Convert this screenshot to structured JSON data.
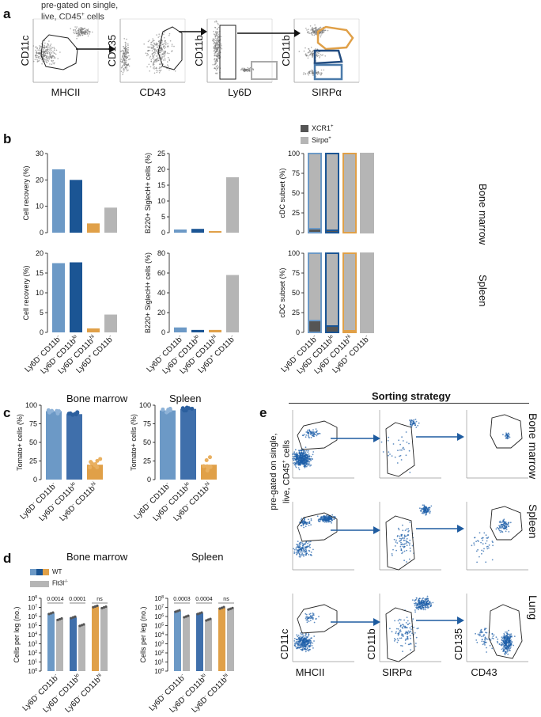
{
  "panel_labels": {
    "a": "a",
    "b": "b",
    "c": "c",
    "d": "d",
    "e": "e"
  },
  "colors": {
    "light_blue": "#6c99c6",
    "dark_blue": "#1b5594",
    "orange": "#e0a048",
    "grey": "#b5b5b5",
    "dots": "#1d5ea8",
    "dark_grey": "#555555"
  },
  "panel_a": {
    "pregate": "pre-gated on single, live, CD45+ cells",
    "pregate_l1": "pre-gated on single,",
    "pregate_l2": "live, CD45",
    "pregate_sup": "+",
    "pregate_l2_end": " cells",
    "plots": [
      {
        "y": "CD11c",
        "x": "MHCII"
      },
      {
        "y": "CD135",
        "x": "CD43"
      },
      {
        "y": "CD11b",
        "x": "Ly6D"
      },
      {
        "y": "CD11b",
        "x": "SIRPα"
      }
    ]
  },
  "panel_b": {
    "legend": [
      {
        "label": "XCR1",
        "sup": "+"
      },
      {
        "label": "Sirpα",
        "sup": "+"
      }
    ],
    "row_labels": [
      "Bone marrow",
      "Spleen"
    ],
    "x_categories": [
      {
        "base": "Ly6D",
        "sup1": "-",
        "mid": " CD11b",
        "sup2": "-"
      },
      {
        "base": "Ly6D",
        "sup1": "-",
        "mid": " CD11b",
        "sup2": "lo"
      },
      {
        "base": "Ly6D",
        "sup1": "-",
        "mid": " CD11b",
        "sup2": "hi"
      },
      {
        "base": "Ly6D",
        "sup1": "+",
        "mid": " CD11b",
        "sup2": "-"
      }
    ],
    "charts": [
      {
        "ylabel": "Cell recovery (%)",
        "ymax": 30,
        "ticks": [
          0,
          10,
          20,
          30
        ],
        "values": [
          24,
          20,
          3.5,
          9.5
        ]
      },
      {
        "ylabel": "B220+ SiglecH+ cells (%)",
        "ymax": 25,
        "ticks": [
          0,
          5,
          10,
          15,
          20,
          25
        ],
        "values": [
          1,
          1.2,
          0.5,
          17.5
        ]
      },
      {
        "ylabel": "cDC subset (%)",
        "ymax": 100,
        "ticks": [
          0,
          25,
          50,
          75,
          100
        ],
        "stack_xcr1": [
          5,
          3,
          0,
          0
        ],
        "stack_sirpa": [
          95,
          97,
          100,
          100
        ]
      },
      {
        "ylabel": "Cell recovery (%)",
        "ymax": 20,
        "ticks": [
          0,
          5,
          10,
          15,
          20
        ],
        "values": [
          17.5,
          17.7,
          1,
          4.5
        ]
      },
      {
        "ylabel": "B220+ SiglecH+ cells (%)",
        "ymax": 80,
        "ticks": [
          0,
          20,
          40,
          60,
          80
        ],
        "values": [
          5,
          2.5,
          2.5,
          58
        ]
      },
      {
        "ylabel": "cDC subset (%)",
        "ymax": 100,
        "ticks": [
          0,
          25,
          50,
          75,
          100
        ],
        "stack_xcr1": [
          15,
          8,
          2,
          0
        ],
        "stack_sirpa": [
          85,
          92,
          98,
          100
        ]
      }
    ]
  },
  "panel_c": {
    "titles": [
      "Bone marrow",
      "Spleen"
    ],
    "ylabel": "Tomato+ cells (%)",
    "ticks": [
      0,
      25,
      50,
      75,
      100
    ],
    "x_categories": [
      {
        "base": "Ly6D",
        "sup1": "-",
        "mid": " CD11b",
        "sup2": "-"
      },
      {
        "base": "Ly6D",
        "sup1": "-",
        "mid": " CD11b",
        "sup2": "lo"
      },
      {
        "base": "Ly6D",
        "sup1": "-",
        "mid": " CD11b",
        "sup2": "hi"
      }
    ],
    "bm_values": [
      92,
      88,
      20
    ],
    "spleen_values": [
      93,
      95,
      20
    ]
  },
  "panel_d": {
    "titles": [
      "Bone marrow",
      "Spleen"
    ],
    "legend": [
      {
        "label": "WT"
      },
      {
        "label": "Flt3l",
        "sup": "-/-"
      }
    ],
    "ylabel": "Cells per leg (no.)",
    "ticks": [
      "10^0",
      "10^1",
      "10^2",
      "10^3",
      "10^4",
      "10^5",
      "10^6",
      "10^7",
      "10^8"
    ],
    "bm_pvalues": [
      "0.0014",
      "0.0001",
      "ns"
    ],
    "spleen_pvalues": [
      "0.0003",
      "0.0004",
      "ns"
    ],
    "bm_log_values": [
      [
        6.35,
        5.7
      ],
      [
        5.9,
        5.05
      ],
      [
        7.1,
        7.0
      ]
    ],
    "spleen_log_values": [
      [
        6.6,
        6.0
      ],
      [
        6.35,
        5.65
      ],
      [
        6.95,
        6.85
      ]
    ]
  },
  "panel_e": {
    "title": "Sorting strategy",
    "side_label": "pre-gated on single, live, CD45+ cells",
    "side_l1": "pre-gated on single,",
    "side_l2": "live, CD45",
    "side_sup": "+",
    "side_l2_end": " cells",
    "row_labels": [
      "Bone marrow",
      "Spleen",
      "Lung"
    ],
    "axes": [
      {
        "y": "CD11c",
        "x": "MHCII"
      },
      {
        "y": "CD11b",
        "x": "SIRPα"
      },
      {
        "y": "CD135",
        "x": "CD43"
      }
    ]
  }
}
